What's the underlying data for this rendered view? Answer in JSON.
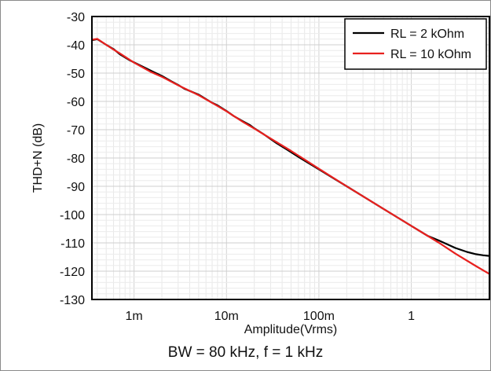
{
  "chart_data": {
    "type": "line",
    "title": "",
    "caption": "BW = 80 kHz, f = 1 kHz",
    "xlabel": "Amplitude(Vrms)",
    "ylabel": "THD+N (dB)",
    "xscale": "log",
    "xlim": [
      0.00035,
      7
    ],
    "ylim": [
      -130,
      -30
    ],
    "yticks": [
      -30,
      -40,
      -50,
      -60,
      -70,
      -80,
      -90,
      -100,
      -110,
      -120,
      -130
    ],
    "xticks": [
      {
        "value": 0.001,
        "label": "1m"
      },
      {
        "value": 0.01,
        "label": "10m"
      },
      {
        "value": 0.1,
        "label": "100m"
      },
      {
        "value": 1,
        "label": "1"
      }
    ],
    "grid": true,
    "legend_position": "top-right",
    "series": [
      {
        "name": "RL = 2 kOhm",
        "color": "#000000",
        "points": [
          [
            0.00035,
            -38.4
          ],
          [
            0.0004,
            -38
          ],
          [
            0.0005,
            -40
          ],
          [
            0.0006,
            -41.5
          ],
          [
            0.0007,
            -43.3
          ],
          [
            0.0009,
            -45.5
          ],
          [
            0.0012,
            -47.5
          ],
          [
            0.0016,
            -49.5
          ],
          [
            0.002,
            -51
          ],
          [
            0.0025,
            -52.8
          ],
          [
            0.003,
            -54.2
          ],
          [
            0.0035,
            -55.5
          ],
          [
            0.004,
            -56.3
          ],
          [
            0.005,
            -57.6
          ],
          [
            0.006,
            -59.2
          ],
          [
            0.007,
            -60.5
          ],
          [
            0.008,
            -61.4
          ],
          [
            0.01,
            -63.4
          ],
          [
            0.012,
            -65.2
          ],
          [
            0.015,
            -67
          ],
          [
            0.018,
            -68.4
          ],
          [
            0.02,
            -69.5
          ],
          [
            0.025,
            -71.5
          ],
          [
            0.03,
            -73.3
          ],
          [
            0.035,
            -74.8
          ],
          [
            0.045,
            -77
          ],
          [
            0.06,
            -79.6
          ],
          [
            0.1,
            -84
          ],
          [
            0.2,
            -90
          ],
          [
            0.5,
            -98
          ],
          [
            1,
            -104
          ],
          [
            1.5,
            -107.5
          ],
          [
            2,
            -109.2
          ],
          [
            3,
            -111.8
          ],
          [
            4,
            -113.2
          ],
          [
            5,
            -114
          ],
          [
            6,
            -114.4
          ],
          [
            7,
            -114.6
          ]
        ]
      },
      {
        "name": "RL = 10 kOhm",
        "color": "#e8201e",
        "points": [
          [
            0.00035,
            -38.2
          ],
          [
            0.0004,
            -37.9
          ],
          [
            0.0005,
            -40
          ],
          [
            0.0006,
            -41.7
          ],
          [
            0.0007,
            -43
          ],
          [
            0.001,
            -46.3
          ],
          [
            0.0015,
            -49.5
          ],
          [
            0.002,
            -51.3
          ],
          [
            0.003,
            -54.3
          ],
          [
            0.005,
            -57.8
          ],
          [
            0.008,
            -61.6
          ],
          [
            0.01,
            -63.5
          ],
          [
            0.015,
            -67.2
          ],
          [
            0.02,
            -69.6
          ],
          [
            0.03,
            -73.1
          ],
          [
            0.05,
            -77.5
          ],
          [
            0.1,
            -83.8
          ],
          [
            0.2,
            -90
          ],
          [
            0.5,
            -98
          ],
          [
            1,
            -104
          ],
          [
            2,
            -110
          ],
          [
            3,
            -113.8
          ],
          [
            5,
            -118.2
          ],
          [
            7,
            -121
          ]
        ]
      }
    ]
  }
}
